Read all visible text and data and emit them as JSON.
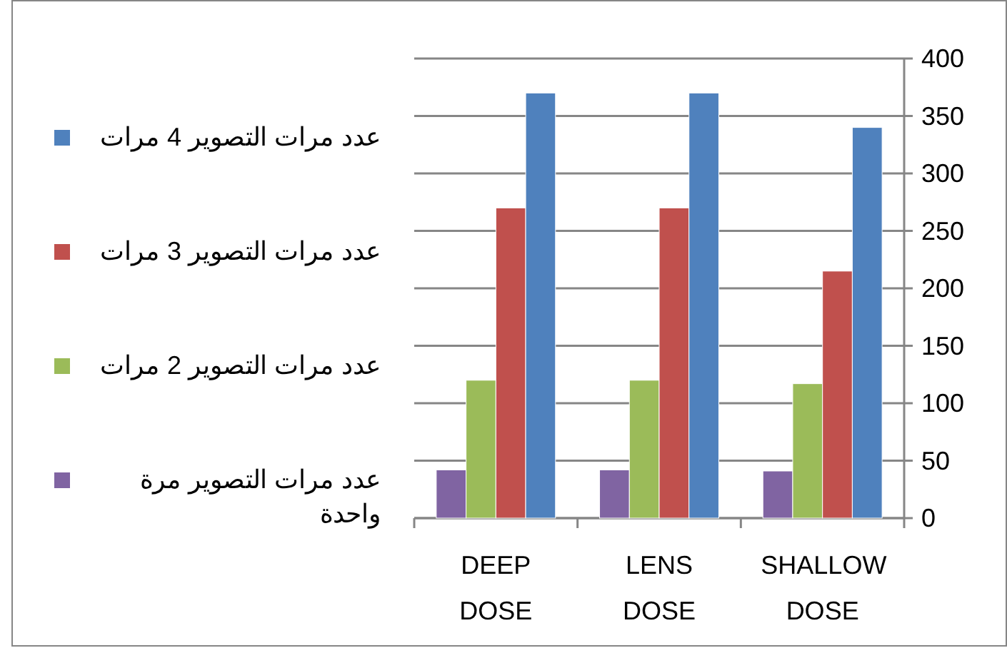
{
  "chart_data": {
    "type": "bar",
    "categories": [
      "DEEP DOSE",
      "LENS DOSE",
      "SHALLOW DOSE"
    ],
    "series": [
      {
        "name": "عدد مرات التصوير مرة واحدة",
        "color": "#8064a2",
        "values": [
          42,
          42,
          41
        ]
      },
      {
        "name": "عدد مرات التصوير 2 مرات",
        "color": "#9bbb59",
        "values": [
          120,
          120,
          117
        ]
      },
      {
        "name": "عدد مرات التصوير 3 مرات",
        "color": "#c0504d",
        "values": [
          270,
          270,
          215
        ]
      },
      {
        "name": "عدد مرات التصوير 4 مرات",
        "color": "#4f81bd",
        "values": [
          370,
          370,
          340
        ]
      }
    ],
    "ylim": [
      0,
      400
    ],
    "yticks": [
      0,
      50,
      100,
      150,
      200,
      250,
      300,
      350,
      400
    ],
    "grid": "y",
    "legend": "left"
  }
}
